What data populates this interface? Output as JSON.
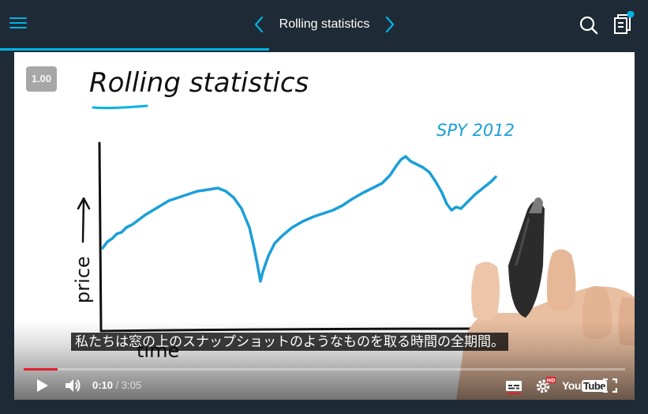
{
  "header": {
    "title": "Rolling statistics",
    "lesson_progress_fraction": 0.415
  },
  "video": {
    "speed": "1.00",
    "subtitle": "私たちは窓の上のスナップショットのようなものを取る時間の全期間。",
    "board": {
      "heading": "Rolling statistics",
      "series_label": "SPY 2012",
      "y_axis_label": "price",
      "x_axis_label": "time"
    },
    "player": {
      "current_time": "0:10",
      "duration": "3:05",
      "played_fraction": 0.057,
      "brand": "YouTube",
      "hd_badge": "HD"
    }
  },
  "colors": {
    "accent": "#02b3e4",
    "header_bg": "#1e2a35",
    "ink": "#111111",
    "seek_played": "#e1202c"
  }
}
